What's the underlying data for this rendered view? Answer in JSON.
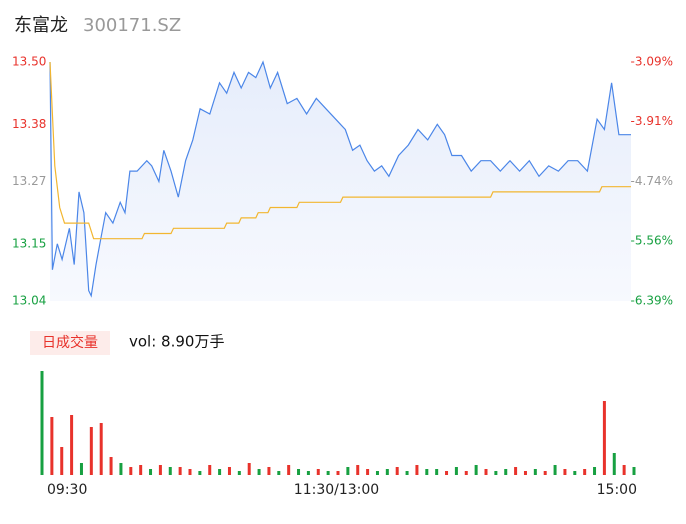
{
  "header": {
    "name": "东富龙",
    "code": "300171.SZ"
  },
  "chart_data": [
    {
      "type": "line",
      "x": [
        0,
        1,
        3,
        5,
        8,
        10,
        12,
        14,
        16,
        17,
        19,
        21,
        23,
        26,
        29,
        31,
        33,
        36,
        40,
        42,
        45,
        47,
        50,
        53,
        56,
        59,
        62,
        66,
        70,
        73,
        76,
        79,
        82,
        85,
        88,
        91,
        94,
        98,
        102,
        106,
        110,
        114,
        118,
        122,
        125,
        128,
        131,
        134,
        137,
        140,
        144,
        148,
        152,
        156,
        160,
        163,
        166,
        170,
        174,
        178,
        182,
        186,
        190,
        194,
        198,
        202,
        206,
        210,
        214,
        218,
        222,
        226,
        229,
        232,
        235,
        238,
        240
      ],
      "xlim": [
        0,
        240
      ],
      "xticks": [
        {
          "value": 0,
          "label": "09:30"
        },
        {
          "value": 120,
          "label": "11:30/13:00"
        },
        {
          "value": 240,
          "label": "15:00"
        }
      ],
      "ylim": [
        13.04,
        13.5
      ],
      "yticks": [
        {
          "value": 13.5,
          "label": "13.50"
        },
        13.38,
        13.27,
        13.15,
        13.04
      ],
      "y2lim": [
        -6.39,
        -3.09
      ],
      "y2ticks": [
        {
          "value": -3.09,
          "label": "-3.09%"
        },
        {
          "value": -3.91,
          "label": "-3.91%"
        },
        {
          "value": -4.74,
          "label": "-4.74%"
        },
        {
          "value": -5.56,
          "label": "-5.56%"
        },
        {
          "value": -6.39,
          "label": "-6.39%"
        }
      ],
      "tick_colors": [
        "#e8322b",
        "#e8322b",
        "#999999",
        "#17a041",
        "#17a041"
      ],
      "series": [
        {
          "color": "#4b86e8",
          "area": true,
          "values": [
            13.5,
            13.1,
            13.15,
            13.12,
            13.18,
            13.11,
            13.25,
            13.21,
            13.06,
            13.05,
            13.11,
            13.16,
            13.21,
            13.19,
            13.23,
            13.21,
            13.29,
            13.29,
            13.31,
            13.3,
            13.27,
            13.33,
            13.29,
            13.24,
            13.31,
            13.35,
            13.41,
            13.4,
            13.46,
            13.44,
            13.48,
            13.45,
            13.48,
            13.47,
            13.5,
            13.45,
            13.48,
            13.42,
            13.43,
            13.4,
            13.43,
            13.41,
            13.39,
            13.37,
            13.33,
            13.34,
            13.31,
            13.29,
            13.3,
            13.28,
            13.32,
            13.34,
            13.37,
            13.35,
            13.38,
            13.36,
            13.32,
            13.32,
            13.29,
            13.31,
            13.31,
            13.29,
            13.31,
            13.29,
            13.31,
            13.28,
            13.3,
            13.29,
            13.31,
            13.31,
            13.29,
            13.39,
            13.37,
            13.46,
            13.36,
            13.36,
            13.36
          ]
        },
        {
          "color": "#f2b630",
          "x": [
            0,
            2,
            4,
            6,
            10,
            16,
            18,
            38,
            39,
            50,
            51,
            72,
            73,
            78,
            79,
            85,
            86,
            90,
            91,
            102,
            103,
            120,
            121,
            182,
            183,
            227,
            228,
            240
          ],
          "values": [
            13.5,
            13.3,
            13.22,
            13.19,
            13.19,
            13.19,
            13.16,
            13.16,
            13.17,
            13.17,
            13.18,
            13.18,
            13.19,
            13.19,
            13.2,
            13.2,
            13.21,
            13.21,
            13.22,
            13.22,
            13.23,
            13.23,
            13.24,
            13.24,
            13.25,
            13.25,
            13.26,
            13.26
          ]
        }
      ]
    },
    {
      "type": "bar",
      "label": "日成交量",
      "vol_label": "vol: 8.90万手",
      "xlim": [
        0,
        240
      ],
      "ylim": [
        0,
        4200
      ],
      "x": [
        0,
        4,
        8,
        12,
        16,
        20,
        24,
        28,
        32,
        36,
        40,
        44,
        48,
        52,
        56,
        60,
        64,
        68,
        72,
        76,
        80,
        84,
        88,
        92,
        96,
        100,
        104,
        108,
        112,
        116,
        120,
        124,
        128,
        132,
        136,
        140,
        144,
        148,
        152,
        156,
        160,
        164,
        168,
        172,
        176,
        180,
        184,
        188,
        192,
        196,
        200,
        204,
        208,
        212,
        216,
        220,
        224,
        228,
        232,
        236,
        240
      ],
      "values": [
        4160,
        2320,
        1120,
        2400,
        480,
        1920,
        2080,
        720,
        480,
        320,
        400,
        240,
        400,
        320,
        320,
        240,
        160,
        400,
        240,
        320,
        160,
        480,
        240,
        320,
        160,
        400,
        240,
        160,
        240,
        160,
        160,
        320,
        400,
        240,
        160,
        240,
        320,
        160,
        400,
        240,
        240,
        160,
        320,
        160,
        400,
        240,
        160,
        240,
        320,
        160,
        240,
        160,
        400,
        240,
        160,
        240,
        320,
        2960,
        880,
        400,
        320
      ],
      "colors": [
        "#17a041",
        "#e8322b",
        "#e8322b",
        "#e8322b",
        "#17a041",
        "#e8322b",
        "#e8322b",
        "#e8322b",
        "#17a041",
        "#e8322b",
        "#e8322b",
        "#17a041",
        "#e8322b",
        "#17a041",
        "#e8322b",
        "#e8322b",
        "#17a041",
        "#e8322b",
        "#17a041",
        "#e8322b",
        "#17a041",
        "#e8322b",
        "#17a041",
        "#e8322b",
        "#17a041",
        "#e8322b",
        "#17a041",
        "#17a041",
        "#e8322b",
        "#17a041",
        "#e8322b",
        "#17a041",
        "#e8322b",
        "#e8322b",
        "#17a041",
        "#17a041",
        "#e8322b",
        "#17a041",
        "#e8322b",
        "#17a041",
        "#17a041",
        "#e8322b",
        "#17a041",
        "#e8322b",
        "#17a041",
        "#e8322b",
        "#17a041",
        "#17a041",
        "#e8322b",
        "#e8322b",
        "#17a041",
        "#e8322b",
        "#17a041",
        "#e8322b",
        "#17a041",
        "#e8322b",
        "#17a041",
        "#e8322b",
        "#17a041",
        "#e8322b",
        "#17a041"
      ]
    }
  ]
}
